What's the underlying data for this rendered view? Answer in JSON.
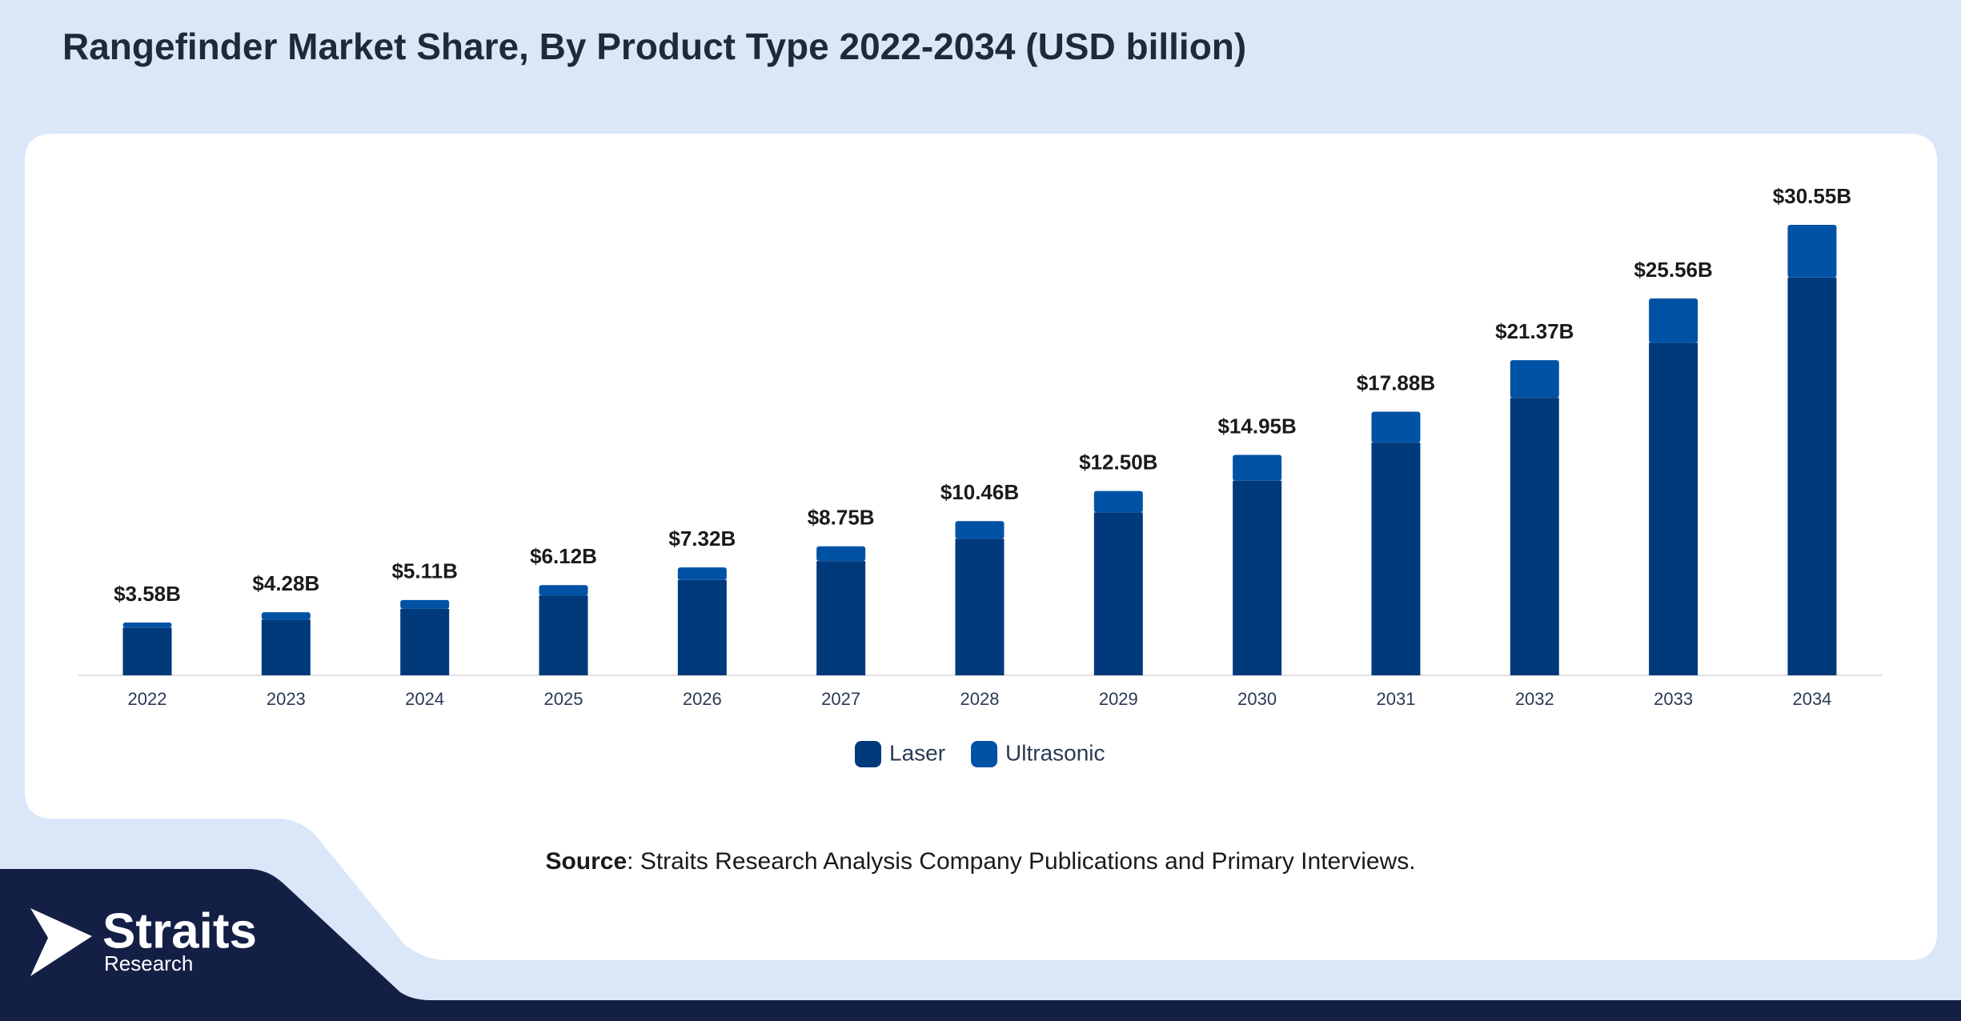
{
  "chart_data": {
    "type": "stacked_bar",
    "title": "Rangefinder Market Share, By Product Type 2022-2034 (USD billion)",
    "categories": [
      "2022",
      "2023",
      "2024",
      "2025",
      "2026",
      "2027",
      "2028",
      "2029",
      "2030",
      "2031",
      "2032",
      "2033",
      "2034"
    ],
    "series": [
      {
        "name": "Laser",
        "color": "#003a7a",
        "values": [
          3.24,
          3.78,
          4.51,
          5.42,
          6.47,
          7.75,
          9.26,
          11.05,
          13.2,
          15.78,
          18.82,
          22.56,
          26.98
        ]
      },
      {
        "name": "Ultrasonic",
        "color": "#0052a5",
        "values": [
          0.34,
          0.5,
          0.6,
          0.7,
          0.85,
          1.0,
          1.2,
          1.45,
          1.75,
          2.1,
          2.55,
          3.0,
          3.57
        ]
      }
    ],
    "totals": {
      "values": [
        3.58,
        4.28,
        5.11,
        6.12,
        7.32,
        8.75,
        10.46,
        12.5,
        14.95,
        17.88,
        21.37,
        25.56,
        30.55
      ],
      "value_labels": [
        "$3.58B",
        "$4.28B",
        "$5.11B",
        "$6.12B",
        "$7.32B",
        "$8.75B",
        "$10.46B",
        "$12.50B",
        "$14.95B",
        "$17.88B",
        "$21.37B",
        "$25.56B",
        "$30.55B"
      ]
    },
    "legend": "bottom",
    "source": {
      "label": "Source",
      "text": ": Straits Research Analysis Company Publications and Primary Interviews."
    },
    "logo": {
      "name": "Straits",
      "sub": "Research"
    }
  }
}
